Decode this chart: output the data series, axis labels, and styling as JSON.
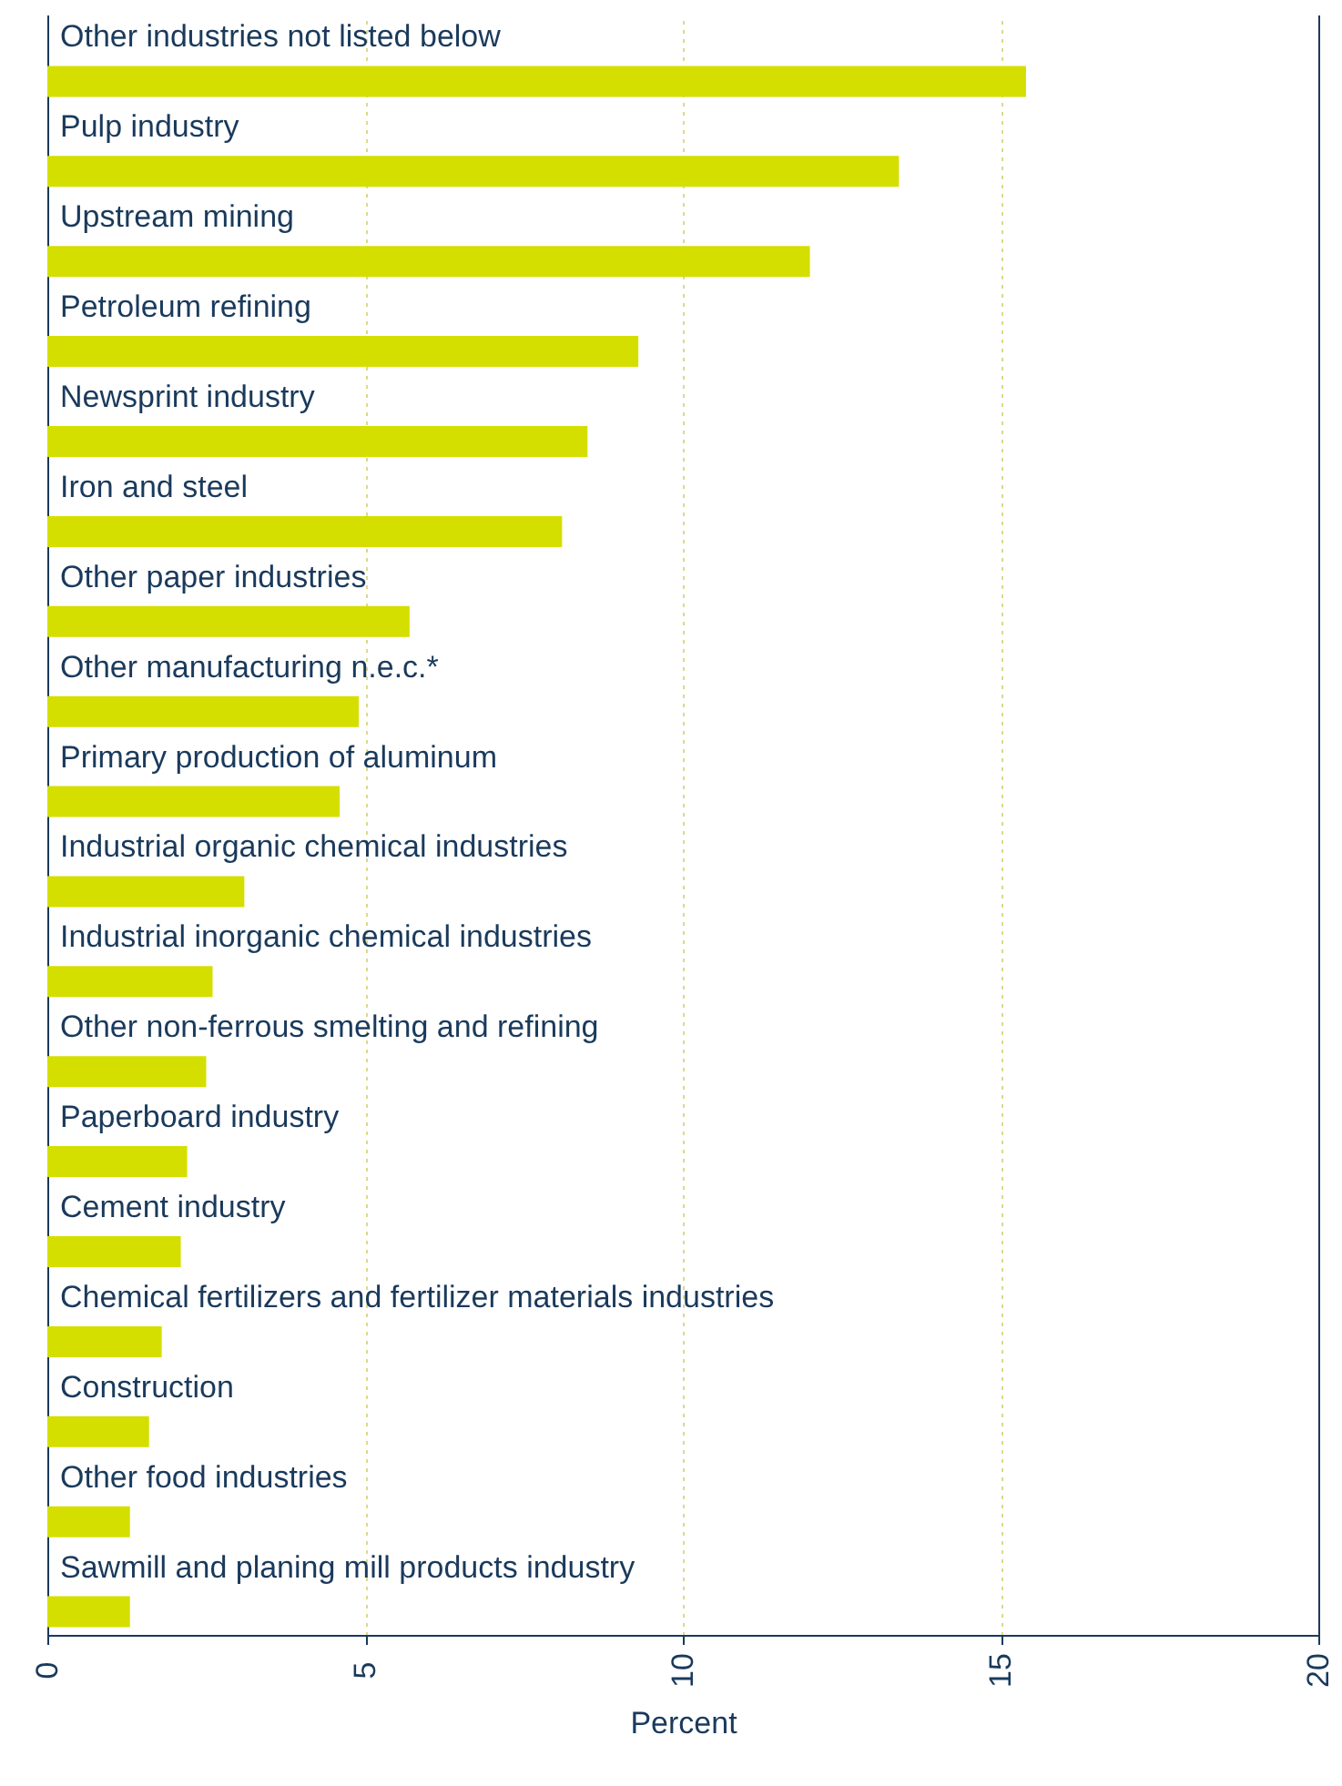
{
  "chart_data": {
    "type": "bar",
    "orientation": "horizontal",
    "xlabel": "Percent",
    "categories": [
      "Other industries not listed below",
      "Pulp industry",
      "Upstream mining",
      "Petroleum refining",
      "Newsprint industry",
      "Iron and steel",
      "Other paper industries",
      "Other manufacturing n.e.c.*",
      "Primary production of aluminum",
      "Industrial organic chemical industries",
      "Industrial inorganic chemical industries",
      "Other non-ferrous smelting and refining",
      "Paperboard industry",
      "Cement industry",
      "Chemical fertilizers and fertilizer materials industries",
      "Construction",
      "Other food industries",
      "Sawmill and planing mill products industry"
    ],
    "values": [
      15.4,
      13.4,
      12.0,
      9.3,
      8.5,
      8.1,
      5.7,
      4.9,
      4.6,
      3.1,
      2.6,
      2.5,
      2.2,
      2.1,
      1.8,
      1.6,
      1.3,
      1.3
    ],
    "color": "#d4df00",
    "xlim": [
      0,
      20
    ],
    "xticks": [
      0,
      5,
      10,
      15,
      20
    ],
    "grid": "x"
  }
}
